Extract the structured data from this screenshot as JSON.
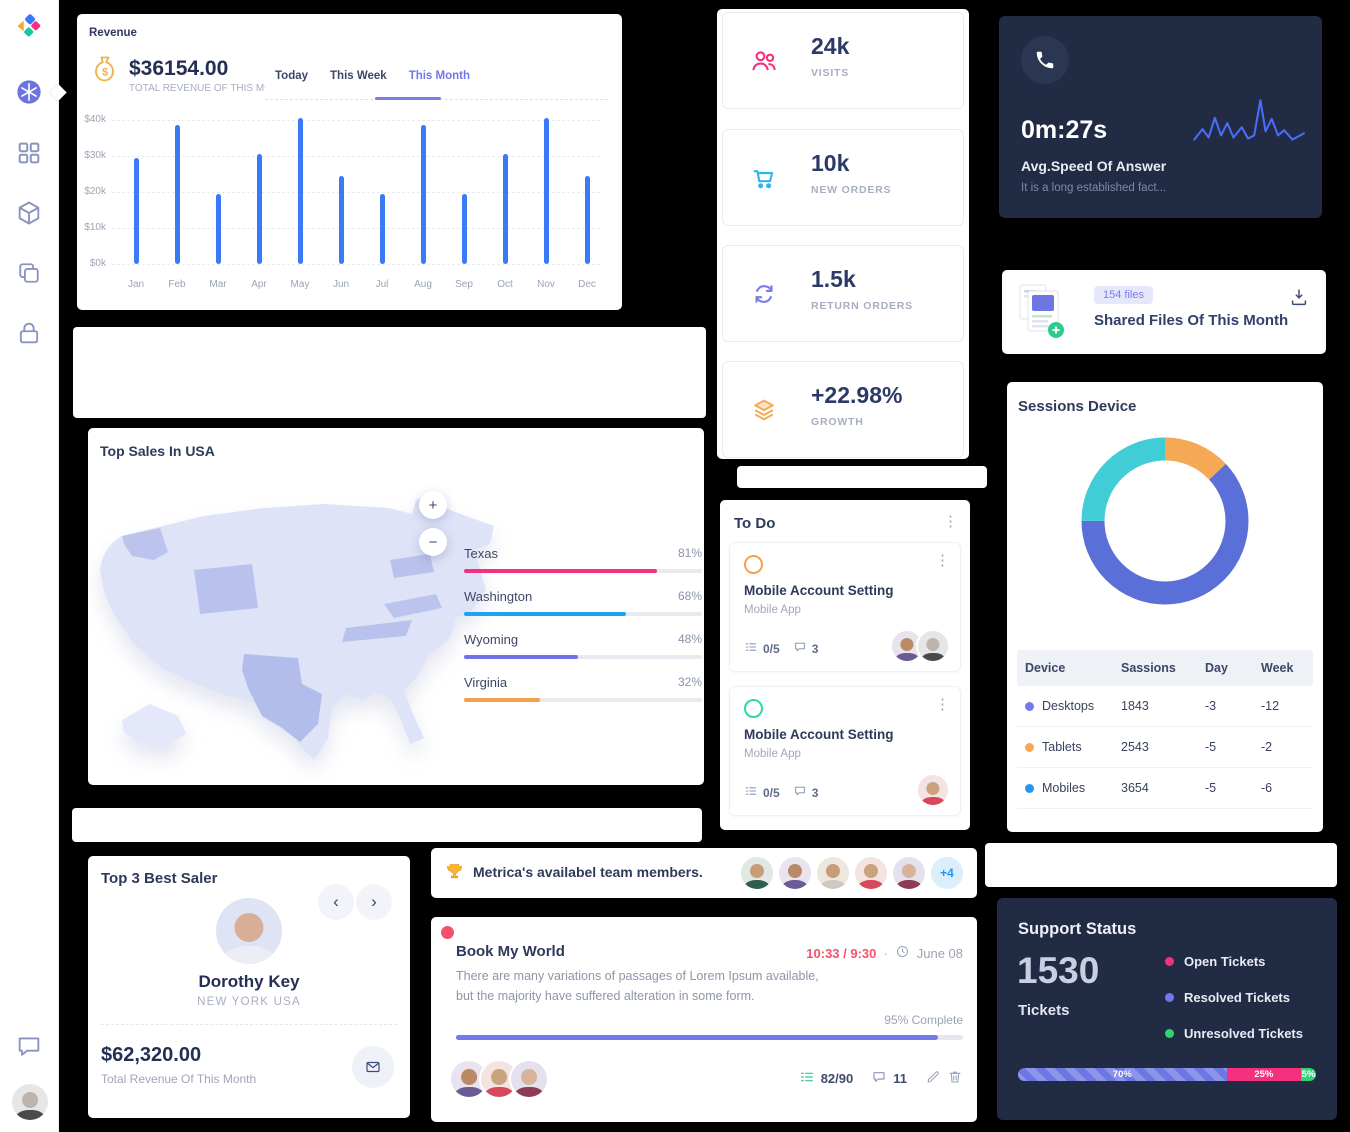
{
  "sidebar": {
    "items": [
      "logo",
      "dashboard",
      "widgets",
      "products",
      "pages",
      "authentication",
      "chat",
      "profile"
    ]
  },
  "revenue": {
    "title": "Revenue",
    "amount": "$36154.00",
    "subtitle": "TOTAL REVENUE OF THIS MONTH",
    "tabs": [
      "Today",
      "This Week",
      "This Month"
    ],
    "active_tab": "This Month"
  },
  "stats": [
    {
      "value": "24k",
      "label": "VISITS",
      "icon": "users-icon",
      "color": "#f5317f"
    },
    {
      "value": "10k",
      "label": "NEW ORDERS",
      "icon": "cart-icon",
      "color": "#2fb5f3"
    },
    {
      "value": "1.5k",
      "label": "RETURN ORDERS",
      "icon": "swap-icon",
      "color": "#7a7ee8"
    },
    {
      "value": "+22.98%",
      "label": "GROWTH",
      "icon": "layers-icon",
      "color": "#f5a954"
    }
  ],
  "answer_speed": {
    "value": "0m:27s",
    "title": "Avg.Speed Of Answer",
    "subtitle": "It is a long established fact...",
    "sparkline": [
      [
        2,
        46
      ],
      [
        10,
        36
      ],
      [
        16,
        44
      ],
      [
        22,
        25
      ],
      [
        28,
        42
      ],
      [
        34,
        30
      ],
      [
        40,
        44
      ],
      [
        48,
        34
      ],
      [
        54,
        45
      ],
      [
        60,
        42
      ],
      [
        66,
        8
      ],
      [
        71,
        38
      ],
      [
        77,
        26
      ],
      [
        83,
        42
      ],
      [
        89,
        37
      ],
      [
        97,
        46
      ],
      [
        108,
        40
      ]
    ]
  },
  "shared_files": {
    "badge": "154 files",
    "title": "Shared Files Of This Month"
  },
  "sessions": {
    "title": "Sessions Device",
    "table_headers": [
      "Device",
      "Sassions",
      "Day",
      "Week"
    ],
    "rows": [
      {
        "device": "Desktops",
        "dot": "#7379ea",
        "sassions": "1843",
        "day": "-3",
        "week": "-12"
      },
      {
        "device": "Tablets",
        "dot": "#f5a954",
        "sassions": "2543",
        "day": "-5",
        "week": "-2"
      },
      {
        "device": "Mobiles",
        "dot": "#2196f3",
        "sassions": "3654",
        "day": "-5",
        "week": "-6"
      }
    ]
  },
  "top_sales": {
    "title": "Top Sales In USA",
    "zoom_in": "+",
    "zoom_out": "−",
    "states": [
      {
        "name": "Texas",
        "percent": 81,
        "color": "#f5317f"
      },
      {
        "name": "Washington",
        "percent": 68,
        "color": "#18a5f3"
      },
      {
        "name": "Wyoming",
        "percent": 48,
        "color": "#7173e8"
      },
      {
        "name": "Virginia",
        "percent": 32,
        "color": "#f5a14b"
      }
    ]
  },
  "todo": {
    "title": "To Do",
    "tasks": [
      {
        "title": "Mobile Account Setting",
        "project": "Mobile App",
        "checklist": "0/5",
        "comments": "3",
        "ring": "#f5a14b",
        "avatars": [
          "p2",
          "p6"
        ]
      },
      {
        "title": "Mobile Account Setting",
        "project": "Mobile App",
        "checklist": "0/5",
        "comments": "3",
        "ring": "#2ed8a3",
        "avatars": [
          "p4"
        ]
      }
    ]
  },
  "best_saler": {
    "title": "Top 3 Best Saler",
    "name": "Dorothy Key",
    "location": "NEW YORK USA",
    "revenue": "$62,320.00",
    "revenue_label": "Total Revenue Of This Month",
    "prev": "‹",
    "next": "›"
  },
  "team": {
    "text": "Metrica's availabel team members.",
    "extra": "+4",
    "avatars": [
      "p1",
      "p2",
      "p3",
      "p4",
      "p5"
    ]
  },
  "task_card": {
    "title": "Book My World",
    "time": "10:33 / 9:30",
    "separator": "·",
    "date": "June 08",
    "description_line1": "There are many variations of passages of Lorem Ipsum available,",
    "description_line2": "but the majority have suffered alteration in some form.",
    "progress_label": "95% Complete",
    "progress": 95,
    "checklist": "82/90",
    "comments": "11",
    "avatars": [
      "p2",
      "p4",
      "p5"
    ]
  },
  "support": {
    "title": "Support Status",
    "count": "1530",
    "count_label": "Tickets",
    "legend": [
      {
        "label": "Open Tickets",
        "color": "#f5317f"
      },
      {
        "label": "Resolved Tickets",
        "color": "#7379ea"
      },
      {
        "label": "Unresolved Tickets",
        "color": "#2fd573"
      }
    ]
  },
  "chart_data": [
    {
      "type": "bar",
      "title": "Revenue This Month",
      "categories": [
        "Jan",
        "Feb",
        "Mar",
        "Apr",
        "May",
        "Jun",
        "Jul",
        "Aug",
        "Sep",
        "Oct",
        "Nov",
        "Dec"
      ],
      "values": [
        29.5,
        38.5,
        19.5,
        30.5,
        40.5,
        24.5,
        19.5,
        38.5,
        19.5,
        30.5,
        40.5,
        24.5
      ],
      "unit": "k$",
      "ylabel": "",
      "y_ticks": [
        "$40k",
        "$30k",
        "$20k",
        "$10k",
        "$0k"
      ],
      "ylim": [
        0,
        40
      ],
      "bar_color": "#3b7af7",
      "grid": "dashed"
    },
    {
      "type": "pie",
      "title": "Sessions Device",
      "donut": true,
      "start": "top",
      "segments": [
        {
          "label": "Tablets-segment",
          "percent": 13,
          "color": "#f5a954"
        },
        {
          "label": "Desktops-segment",
          "percent": 62,
          "color": "#5a6fd8"
        },
        {
          "label": "Mobiles-segment",
          "percent": 25,
          "color": "#41cdd5"
        }
      ]
    },
    {
      "type": "bar",
      "title": "Top Sales In USA",
      "categories": [
        "Texas",
        "Washington",
        "Wyoming",
        "Virginia"
      ],
      "values": [
        81,
        68,
        48,
        32
      ],
      "unit": "%"
    },
    {
      "type": "bar",
      "title": "Support Status distribution",
      "stacked": true,
      "segments": [
        {
          "label": "70%",
          "value": 70,
          "color": "#6d77e3",
          "striped": true
        },
        {
          "label": "25%",
          "value": 25,
          "color": "#f5317f",
          "striped": false
        },
        {
          "label": "5%",
          "value": 5,
          "color": "#2fd573",
          "striped": false
        }
      ]
    },
    {
      "type": "line",
      "title": "Avg speed of answer sparkline",
      "values": "decorative sparkline, no axes shown"
    }
  ]
}
